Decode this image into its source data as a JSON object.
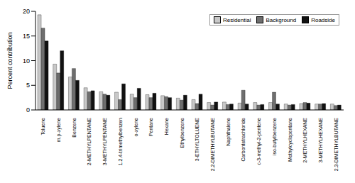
{
  "chart_data": {
    "type": "bar",
    "y_label": "Percent contribution",
    "categories": [
      "Toluene",
      "m.p-xylene",
      "Benzene",
      "2-METHYLPENTANE",
      "3-METHYLPENTANE",
      "1.2.4-trimethylbenzen",
      "o-xylene",
      "Pentane",
      "Hexane",
      "Ethylbenzene",
      "3-ETHYLTOLUENE",
      "2.2-DIMETHYLBUTANE",
      "Naphthalene",
      "Carbontetrachloride",
      "c-3-methyl-2-pentene",
      "iso-butylbenzene",
      "Methylcyclopentane",
      "2-METHYLHEXANE",
      "3-METHYLHEXANE",
      "2.3-DIMETHYLBUTANE"
    ],
    "series": [
      {
        "name": "Residential",
        "color": "#c8c8c8",
        "values": [
          19.3,
          9.3,
          6.7,
          4.5,
          3.7,
          3.6,
          3.2,
          3.1,
          2.9,
          2.4,
          2.1,
          1.5,
          1.6,
          1.4,
          1.5,
          1.5,
          1.2,
          1.3,
          1.2,
          1.2
        ]
      },
      {
        "name": "Background",
        "color": "#6e6e6e",
        "values": [
          16.6,
          7.5,
          8.4,
          3.7,
          3.2,
          2.1,
          2.5,
          2.5,
          2.7,
          2.0,
          1.3,
          1.0,
          1.1,
          4.0,
          1.0,
          3.6,
          1.0,
          1.5,
          1.2,
          0.9
        ]
      },
      {
        "name": "Roadside",
        "color": "#111111",
        "values": [
          14.0,
          12.0,
          6.0,
          3.9,
          3.0,
          5.3,
          4.4,
          3.4,
          2.5,
          3.0,
          3.2,
          1.6,
          1.2,
          1.2,
          1.1,
          1.2,
          1.1,
          1.4,
          1.3,
          1.0
        ]
      }
    ],
    "ylim": [
      0,
      20
    ],
    "yticks": [
      0,
      5,
      10,
      15,
      20
    ],
    "grid": false,
    "legend": "upper right"
  }
}
